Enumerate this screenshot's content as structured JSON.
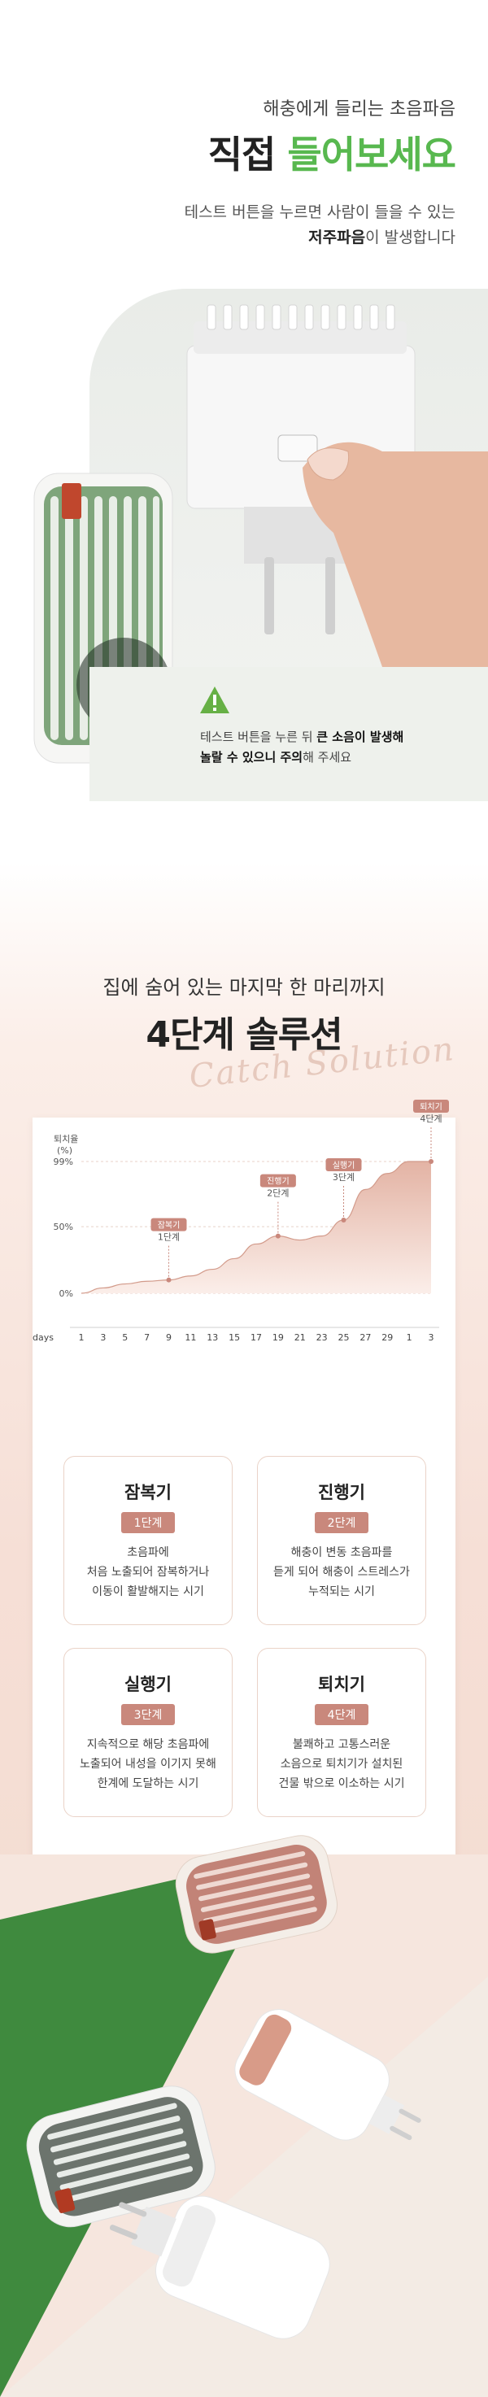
{
  "section1": {
    "subtitle": "해충에게 들리는 초음파음",
    "title_part1": "직접 ",
    "title_part2": "들어보세요",
    "desc_line1": "테스트 버튼을 누르면 사람이 들을 수 있는",
    "desc_line2_bold": "저주파음",
    "desc_line2_rest": "이 발생합니다",
    "warning_text1_a": "테스트 버튼을 누른 뒤 ",
    "warning_text1_b": "큰 소음이 발생해",
    "warning_text2_a": "놀랄 수 있으니 주의",
    "warning_text2_b": "해 주세요",
    "accent_color": "#58b84f"
  },
  "section2": {
    "subtitle": "집에 숨어 있는 마지막 한 마리까지",
    "title": "4단계 솔루션",
    "script_text": "Catch Solution"
  },
  "chart_data": {
    "type": "area",
    "ylabel": "퇴치율\n(%)",
    "ylabel_line1": "퇴치율",
    "ylabel_line2": "(%)",
    "yticks": [
      "99%",
      "50%",
      "0%"
    ],
    "xlabel": "days",
    "x": [
      "1",
      "3",
      "5",
      "7",
      "9",
      "11",
      "13",
      "15",
      "17",
      "19",
      "21",
      "23",
      "25",
      "27",
      "29",
      "1",
      "3"
    ],
    "values": [
      0,
      4,
      7,
      9,
      10,
      13,
      18,
      26,
      37,
      43,
      40,
      43,
      55,
      78,
      90,
      99,
      99
    ],
    "ylim": [
      0,
      99
    ],
    "markers": [
      {
        "name": "잠복기",
        "step": "1단계",
        "x_index": 4,
        "value": 10
      },
      {
        "name": "진행기",
        "step": "2단계",
        "x_index": 9,
        "value": 43
      },
      {
        "name": "실행기",
        "step": "3단계",
        "x_index": 12,
        "value": 55
      },
      {
        "name": "퇴치기",
        "step": "4단계",
        "x_index": 16,
        "value": 99
      }
    ],
    "colors": {
      "fill_top": "#e3b3a4",
      "fill_bottom": "#fbeee9",
      "line": "#d29a8a",
      "badge": "#c9887c"
    }
  },
  "stages": [
    {
      "name": "잠복기",
      "badge": "1단계",
      "desc1": "초음파에",
      "desc2": "처음 노출되어 잠복하거나",
      "desc3": "이동이 활발해지는 시기"
    },
    {
      "name": "진행기",
      "badge": "2단계",
      "desc1": "해충이 변동 초음파를",
      "desc2": "듣게 되어 해충이 스트레스가",
      "desc3": "누적되는 시기"
    },
    {
      "name": "실행기",
      "badge": "3단계",
      "desc1": "지속적으로 해당 초음파에",
      "desc2": "노출되어 내성을 이기지 못해",
      "desc3": "한계에 도달하는 시기"
    },
    {
      "name": "퇴치기",
      "badge": "4단계",
      "desc1": "불쾌하고 고통스러운",
      "desc2": "소음으로 퇴치기가 설치된",
      "desc3": "건물 밖으로 이소하는 시기"
    }
  ]
}
